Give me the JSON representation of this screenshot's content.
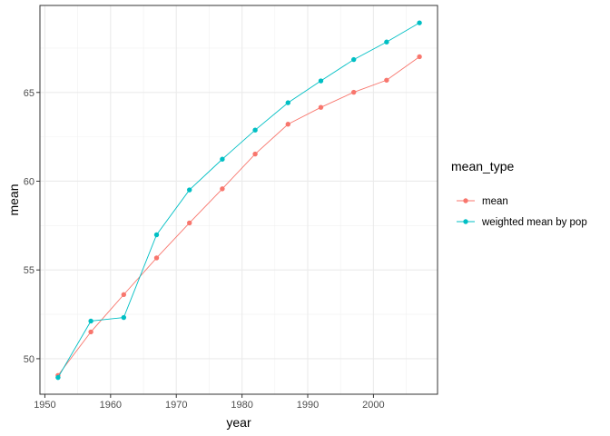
{
  "chart_data": {
    "type": "line",
    "title": "",
    "xlabel": "year",
    "ylabel": "mean",
    "x": [
      1952,
      1957,
      1962,
      1967,
      1972,
      1977,
      1982,
      1987,
      1992,
      1997,
      2002,
      2007
    ],
    "xlim": [
      1949.25,
      2009.75
    ],
    "ylim": [
      48.0,
      69.9
    ],
    "x_ticks": [
      1950,
      1960,
      1970,
      1980,
      1990,
      2000
    ],
    "y_ticks": [
      50,
      55,
      60,
      65
    ],
    "grid": true,
    "legend": {
      "title": "mean_type",
      "placement": "right"
    },
    "series": [
      {
        "name": "mean",
        "color": "#F8766D",
        "values": [
          49.06,
          51.51,
          53.61,
          55.68,
          57.65,
          59.57,
          61.53,
          63.21,
          64.16,
          65.01,
          65.69,
          67.01
        ]
      },
      {
        "name": "weighted mean by pop",
        "color": "#00BFC4",
        "values": [
          48.94,
          52.12,
          52.32,
          56.98,
          59.51,
          61.24,
          62.88,
          64.42,
          65.65,
          66.85,
          67.84,
          68.92
        ]
      }
    ]
  }
}
